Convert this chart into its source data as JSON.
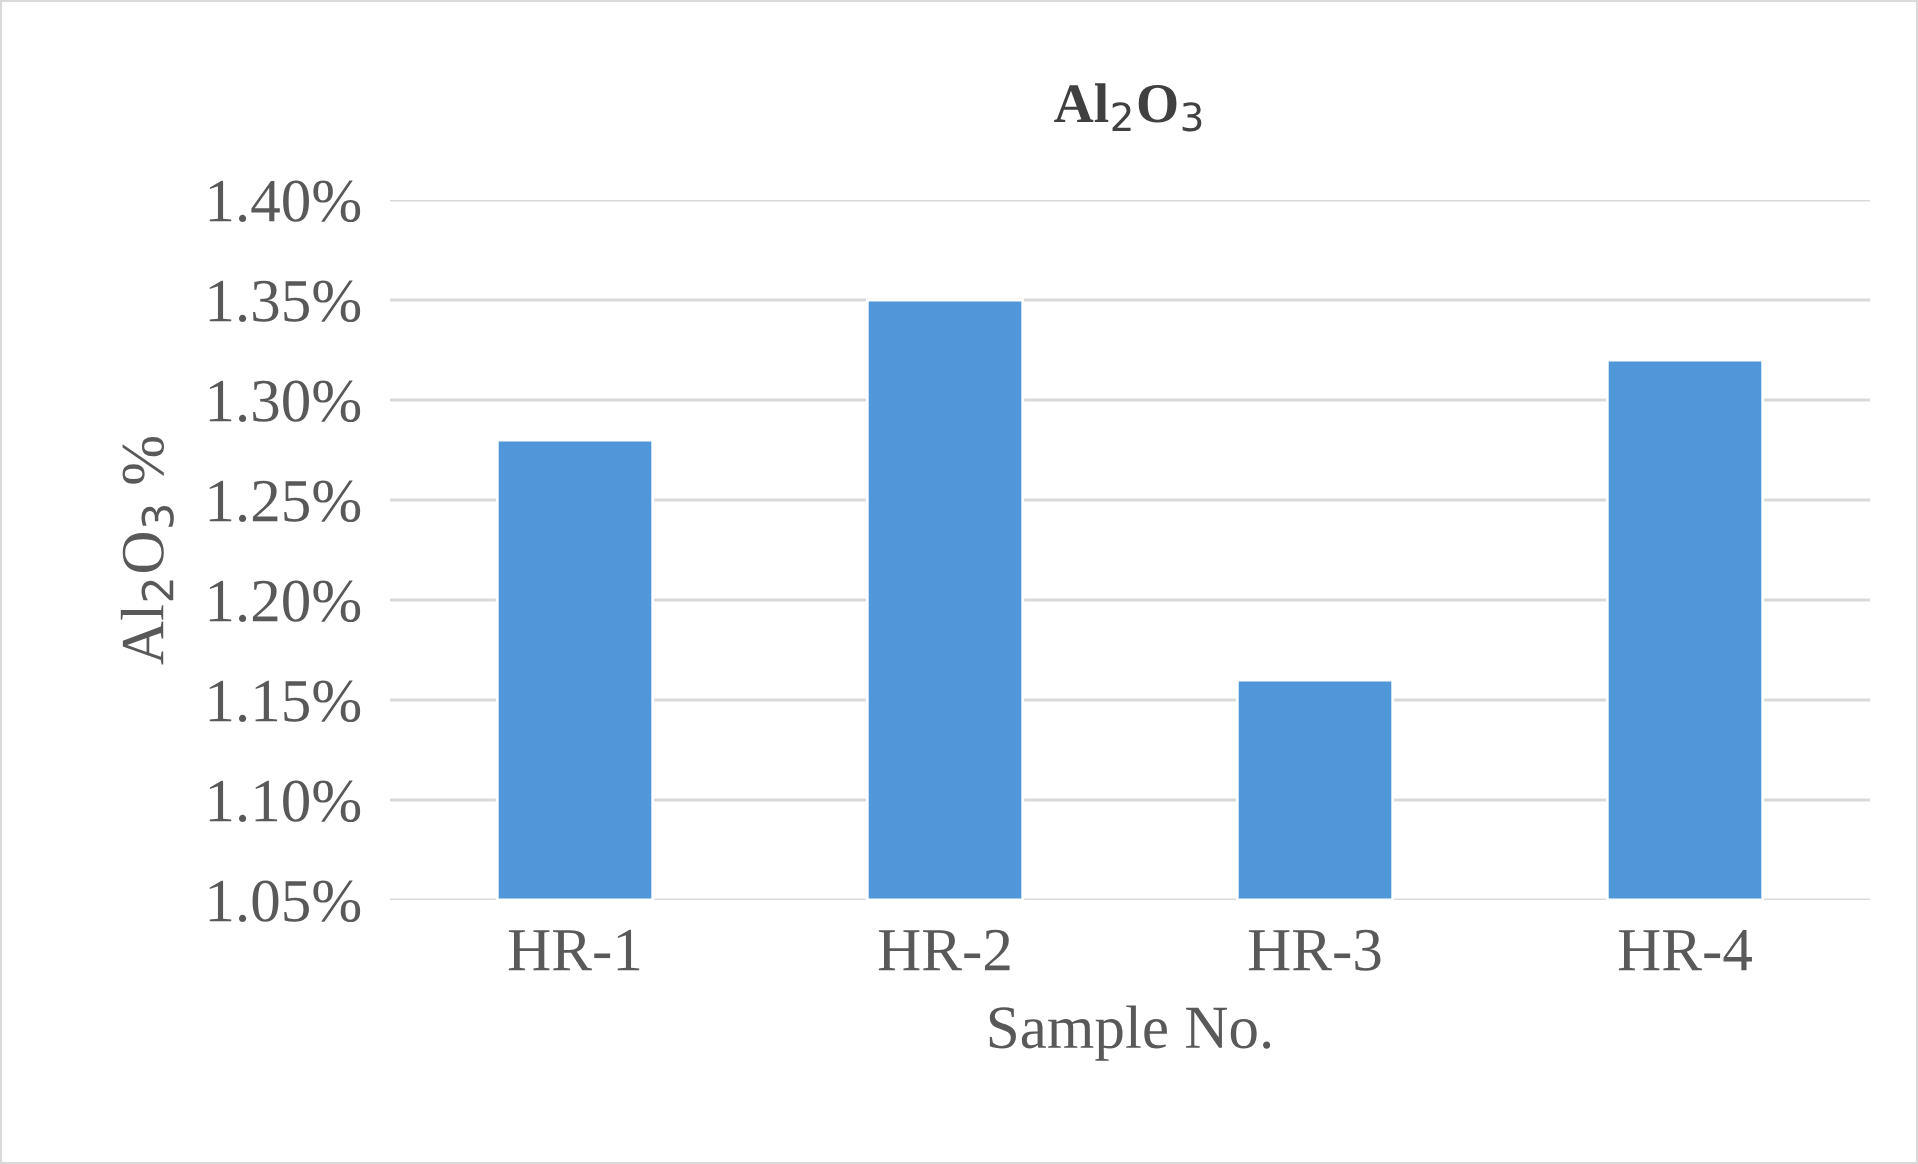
{
  "chart_data": {
    "type": "bar",
    "title": "Al$_{2}$O$_{3}$",
    "xlabel": "Sample No.",
    "ylabel": "Al$_{2}$O$_{3}$ %",
    "categories": [
      "HR-1",
      "HR-2",
      "HR-3",
      "HR-4"
    ],
    "values": [
      1.28,
      1.35,
      1.16,
      1.32
    ],
    "color": "#5097d9",
    "ylim": [
      1.05,
      1.4
    ],
    "yticks": [
      {
        "value": 1.05,
        "label": "1.05%"
      },
      {
        "value": 1.1,
        "label": "1.10%"
      },
      {
        "value": 1.15,
        "label": "1.15%"
      },
      {
        "value": 1.2,
        "label": "1.20%"
      },
      {
        "value": 1.25,
        "label": "1.25%"
      },
      {
        "value": 1.3,
        "label": "1.30%"
      },
      {
        "value": 1.35,
        "label": "1.35%"
      },
      {
        "value": 1.4,
        "label": "1.40%"
      }
    ],
    "grid": "y"
  }
}
